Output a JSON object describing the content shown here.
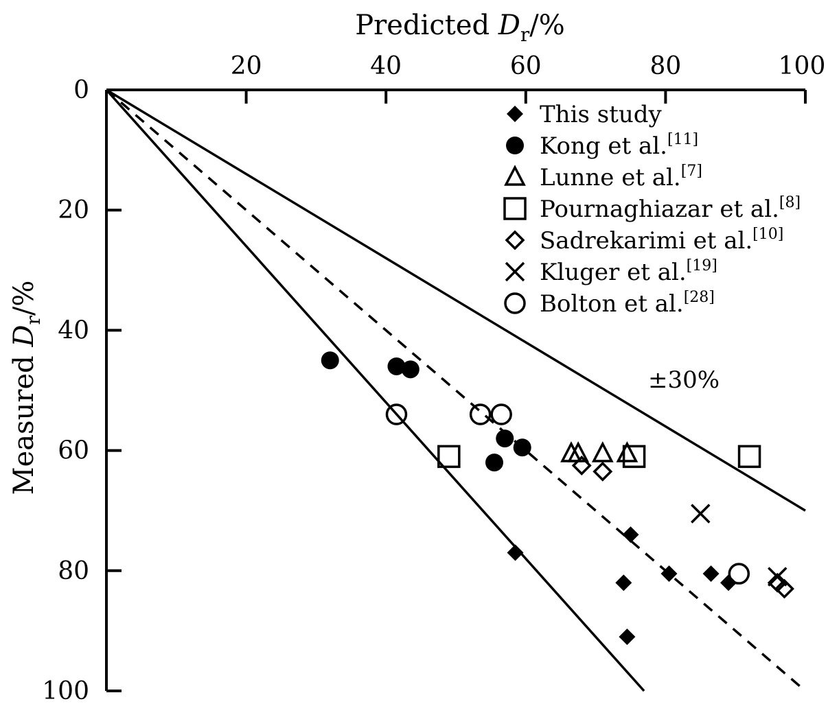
{
  "chart_data": {
    "type": "scatter",
    "xlabel": {
      "text": "Predicted ",
      "var": "D",
      "sub": "r",
      "unit": "/%"
    },
    "ylabel": {
      "text": "Measured ",
      "var": "D",
      "sub": "r",
      "unit": "/%"
    },
    "xlim": [
      0,
      100
    ],
    "ylim": [
      0,
      100
    ],
    "x_axis_position": "top",
    "y_axis_inverted": true,
    "x_ticks": [
      20,
      40,
      60,
      80,
      100
    ],
    "x_tick_labels": [
      "20",
      "40",
      "60",
      "80",
      "100"
    ],
    "y_ticks": [
      0,
      20,
      40,
      60,
      80,
      100
    ],
    "y_tick_labels": [
      "0",
      "20",
      "40",
      "60",
      "80",
      "100"
    ],
    "grid": false,
    "legend_position": "top-right",
    "annotation": "±30%",
    "reference_lines": [
      {
        "style": "dashed",
        "slope": 1.0
      },
      {
        "style": "solid",
        "slope": 1.3
      },
      {
        "style": "solid",
        "slope": 0.7
      }
    ],
    "series": [
      {
        "name": "This study",
        "ref": "",
        "marker": "filled-diamond",
        "points": [
          [
            58.5,
            77
          ],
          [
            75,
            74
          ],
          [
            74,
            82
          ],
          [
            80.5,
            80.5
          ],
          [
            86.5,
            80.5
          ],
          [
            89,
            82
          ],
          [
            74.5,
            91
          ]
        ]
      },
      {
        "name": "Kong et al.",
        "ref": "[11]",
        "marker": "filled-circle",
        "points": [
          [
            32,
            45
          ],
          [
            41.5,
            46
          ],
          [
            43.5,
            46.5
          ],
          [
            57,
            58
          ],
          [
            59.5,
            59.5
          ],
          [
            55.5,
            62
          ]
        ]
      },
      {
        "name": "Lunne et al.",
        "ref": "[7]",
        "marker": "open-triangle",
        "points": [
          [
            66.5,
            60.5
          ],
          [
            67.5,
            60.5
          ],
          [
            71,
            60.5
          ],
          [
            74.5,
            60.5
          ]
        ]
      },
      {
        "name": "Pournaghiazar et al.",
        "ref": "[8]",
        "marker": "open-square",
        "points": [
          [
            49,
            61
          ],
          [
            75.5,
            61
          ],
          [
            92,
            61
          ]
        ]
      },
      {
        "name": "Sadrekarimi et al.",
        "ref": "[10]",
        "marker": "open-diamond",
        "points": [
          [
            68,
            62.5
          ],
          [
            71,
            63.5
          ],
          [
            96,
            82
          ],
          [
            97,
            83
          ]
        ]
      },
      {
        "name": "Kluger et al.",
        "ref": "[19]",
        "marker": "cross",
        "points": [
          [
            85,
            70.5
          ],
          [
            96,
            81
          ]
        ]
      },
      {
        "name": "Bolton et al.",
        "ref": "[28]",
        "marker": "open-circle",
        "points": [
          [
            41.5,
            54
          ],
          [
            53.5,
            54
          ],
          [
            56.5,
            54
          ],
          [
            90.5,
            80.5
          ]
        ]
      }
    ]
  }
}
